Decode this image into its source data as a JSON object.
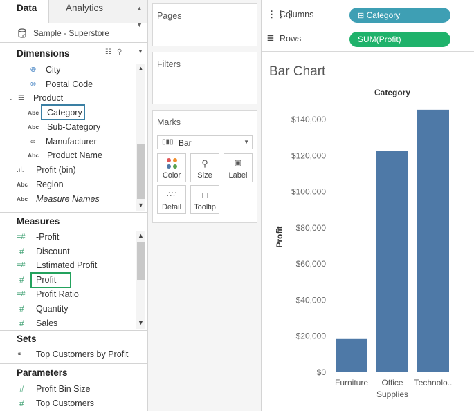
{
  "tabs": {
    "data": "Data",
    "analytics": "Analytics"
  },
  "datasource": "Sample - Superstore",
  "dimensions": {
    "header": "Dimensions",
    "items": [
      {
        "icon": "globe-icon",
        "label": "City"
      },
      {
        "icon": "globe-icon",
        "label": "Postal Code"
      },
      {
        "icon": "hierarchy-icon",
        "label": "Product"
      },
      {
        "icon": "abc-icon",
        "label": "Category"
      },
      {
        "icon": "abc-icon",
        "label": "Sub-Category"
      },
      {
        "icon": "paperclip-icon",
        "label": "Manufacturer"
      },
      {
        "icon": "abc-icon",
        "label": "Product Name"
      },
      {
        "icon": "bin-icon",
        "label": "Profit (bin)"
      },
      {
        "icon": "abc-icon",
        "label": "Region"
      },
      {
        "icon": "abc-icon",
        "label": "Measure Names"
      }
    ]
  },
  "measures": {
    "header": "Measures",
    "items": [
      {
        "icon": "hash-calc-icon",
        "label": "-Profit"
      },
      {
        "icon": "hash-icon",
        "label": "Discount"
      },
      {
        "icon": "hash-calc-icon",
        "label": "Estimated Profit"
      },
      {
        "icon": "hash-icon",
        "label": "Profit"
      },
      {
        "icon": "hash-calc-icon",
        "label": "Profit Ratio"
      },
      {
        "icon": "hash-icon",
        "label": "Quantity"
      },
      {
        "icon": "hash-icon",
        "label": "Sales"
      }
    ]
  },
  "sets": {
    "header": "Sets",
    "items": [
      {
        "icon": "set-icon",
        "label": "Top Customers by Profit"
      }
    ]
  },
  "parameters": {
    "header": "Parameters",
    "items": [
      {
        "icon": "hash-icon",
        "label": "Profit Bin Size"
      },
      {
        "icon": "hash-icon",
        "label": "Top Customers"
      }
    ]
  },
  "cards": {
    "pages": "Pages",
    "filters": "Filters",
    "marks": "Marks",
    "mark_type": "Bar",
    "buttons": {
      "color": "Color",
      "size": "Size",
      "label": "Label",
      "detail": "Detail",
      "tooltip": "Tooltip"
    }
  },
  "shelves": {
    "columns_label": "Columns",
    "columns_pill": "Category",
    "rows_label": "Rows",
    "rows_pill": "SUM(Profit)"
  },
  "colors": {
    "bar": "#4e79a7",
    "dimension_pill": "#3e9fb4",
    "measure_pill": "#1fb26b",
    "highlight_blue": "#3a7fa3",
    "highlight_green": "#23a25d"
  },
  "chart_data": {
    "type": "bar",
    "title": "Bar Chart",
    "xlabel": "Category",
    "ylabel": "Profit",
    "categories": [
      "Furniture",
      "Office Supplies",
      "Technolo.."
    ],
    "category_lines": [
      [
        "Furniture"
      ],
      [
        "Office",
        "Supplies"
      ],
      [
        "Technolo.."
      ]
    ],
    "values": [
      18451,
      122491,
      145455
    ],
    "ylim": [
      0,
      150000
    ],
    "yticks": [
      0,
      20000,
      40000,
      60000,
      80000,
      100000,
      120000,
      140000
    ],
    "ytick_labels": [
      "$0",
      "$20,000",
      "$40,000",
      "$60,000",
      "$80,000",
      "$100,000",
      "$120,000",
      "$140,000"
    ],
    "grid": false
  }
}
